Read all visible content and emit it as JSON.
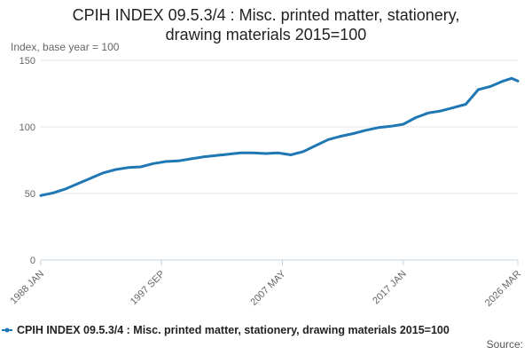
{
  "chart_data": {
    "type": "line",
    "title_line1": "CPIH INDEX 09.5.3/4 : Misc. printed matter, stationery,",
    "title_line2": "drawing materials 2015=100",
    "ylabel": "Index, base year = 100",
    "xlabel": "",
    "ylim": [
      0,
      150
    ],
    "yticks": [
      0,
      50,
      100,
      150
    ],
    "xticks": [
      "1988 JAN",
      "1997 SEP",
      "2007 MAY",
      "2017 JAN",
      "2026 MAR"
    ],
    "grid": true,
    "legend_position": "bottom",
    "color": "#1f77b4",
    "series": [
      {
        "name": "CPIH INDEX 09.5.3/4 : Misc. printed matter, stationery, drawing materials 2015=100",
        "points": [
          [
            "1988 JAN",
            48.5
          ],
          [
            "1989 JAN",
            50.5
          ],
          [
            "1990 JAN",
            53.5
          ],
          [
            "1991 JAN",
            57.5
          ],
          [
            "1992 JAN",
            61.5
          ],
          [
            "1993 JAN",
            65.5
          ],
          [
            "1994 JAN",
            68.0
          ],
          [
            "1995 JAN",
            69.5
          ],
          [
            "1996 JAN",
            70.0
          ],
          [
            "1997 JAN",
            72.5
          ],
          [
            "1997 SEP",
            73.5
          ],
          [
            "1998 JAN",
            74.0
          ],
          [
            "1999 JAN",
            74.5
          ],
          [
            "2000 JAN",
            76.0
          ],
          [
            "2001 JAN",
            77.5
          ],
          [
            "2002 JAN",
            78.5
          ],
          [
            "2003 JAN",
            79.5
          ],
          [
            "2004 JAN",
            80.5
          ],
          [
            "2005 JAN",
            80.5
          ],
          [
            "2006 JAN",
            80.0
          ],
          [
            "2007 JAN",
            80.5
          ],
          [
            "2007 MAY",
            80.0
          ],
          [
            "2008 JAN",
            79.0
          ],
          [
            "2009 JAN",
            81.5
          ],
          [
            "2010 JAN",
            86.0
          ],
          [
            "2011 JAN",
            90.5
          ],
          [
            "2012 JAN",
            93.0
          ],
          [
            "2013 JAN",
            95.0
          ],
          [
            "2014 JAN",
            97.5
          ],
          [
            "2015 JAN",
            99.5
          ],
          [
            "2016 JAN",
            100.5
          ],
          [
            "2017 JAN",
            102.0
          ],
          [
            "2018 JAN",
            107.0
          ],
          [
            "2019 JAN",
            110.5
          ],
          [
            "2020 JAN",
            112.0
          ],
          [
            "2021 JAN",
            114.5
          ],
          [
            "2022 JAN",
            117.0
          ],
          [
            "2023 JAN",
            128.0
          ],
          [
            "2024 JAN",
            130.5
          ],
          [
            "2025 JAN",
            134.5
          ],
          [
            "2025 SEP",
            136.5
          ],
          [
            "2026 MAR",
            134.5
          ]
        ]
      }
    ]
  },
  "footer": {
    "source_label": "Source:"
  }
}
